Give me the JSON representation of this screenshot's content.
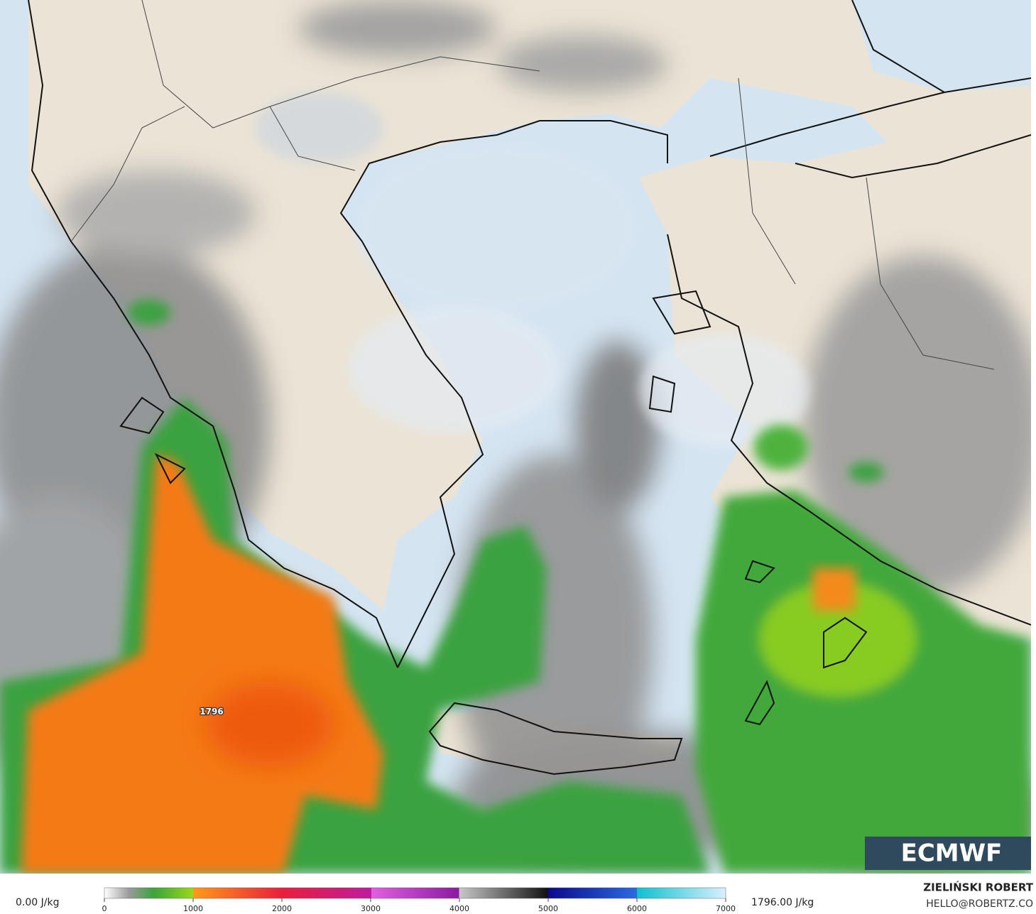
{
  "map": {
    "max_label": "1796",
    "logo": "ECMWF"
  },
  "legend": {
    "min_label": "0.00 J/kg",
    "max_label": "1796.00 J/kg",
    "ticks": [
      0,
      1000,
      2000,
      3000,
      4000,
      5000,
      6000,
      7000
    ]
  },
  "credits": {
    "author": "ZIELIŃSKI ROBERT",
    "contact": "HELLO@ROBERTZ.CO"
  }
}
